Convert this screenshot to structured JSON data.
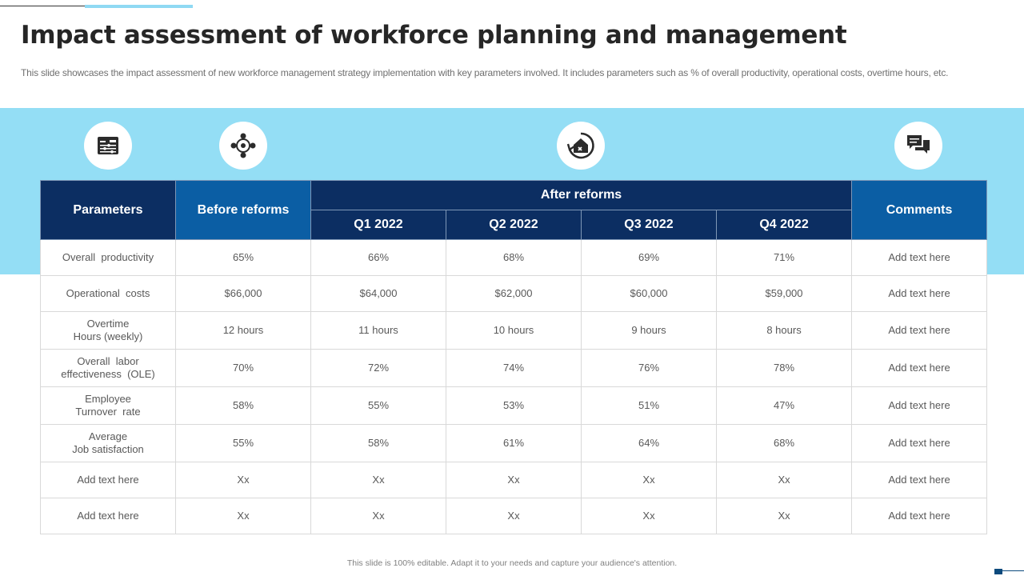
{
  "slide": {
    "title": "Impact assessment of workforce planning and management",
    "subtitle": "This slide showcases the impact assessment of new workforce management strategy implementation with key parameters involved. It includes parameters such as % of overall productivity,  operational costs, overtime hours, etc.",
    "footer": "This slide is 100% editable.  Adapt it to your needs and capture your audience's attention."
  },
  "colors": {
    "band": "#94def5",
    "header_dark": "#0c2e62",
    "header_mid": "#0b5ea4"
  },
  "icons": [
    "dashboard-icon",
    "network-icon",
    "home-refresh-icon",
    "chat-icon"
  ],
  "table": {
    "headers": {
      "parameters": "Parameters",
      "before": "Before reforms",
      "after": "After reforms",
      "q1": "Q1 2022",
      "q2": "Q2 2022",
      "q3": "Q3 2022",
      "q4": "Q4 2022",
      "comments": "Comments"
    },
    "rows": [
      {
        "param": [
          "Overall  productivity"
        ],
        "before": "65%",
        "q1": "66%",
        "q2": "68%",
        "q3": "69%",
        "q4": "71%",
        "comment": "Add text here"
      },
      {
        "param": [
          "Operational  costs"
        ],
        "before": "$66,000",
        "q1": "$64,000",
        "q2": "$62,000",
        "q3": "$60,000",
        "q4": "$59,000",
        "comment": "Add text here"
      },
      {
        "param": [
          "Overtime",
          "Hours (weekly)"
        ],
        "before": "12 hours",
        "q1": "11 hours",
        "q2": "10 hours",
        "q3": "9 hours",
        "q4": "8 hours",
        "comment": "Add text here"
      },
      {
        "param": [
          "Overall  labor",
          "effectiveness  (OLE)"
        ],
        "before": "70%",
        "q1": "72%",
        "q2": "74%",
        "q3": "76%",
        "q4": "78%",
        "comment": "Add text here"
      },
      {
        "param": [
          "Employee",
          "Turnover  rate"
        ],
        "before": "58%",
        "q1": "55%",
        "q2": "53%",
        "q3": "51%",
        "q4": "47%",
        "comment": "Add text here"
      },
      {
        "param": [
          "Average",
          "Job satisfaction"
        ],
        "before": "55%",
        "q1": "58%",
        "q2": "61%",
        "q3": "64%",
        "q4": "68%",
        "comment": "Add text here"
      },
      {
        "param": [
          "Add text here"
        ],
        "before": "Xx",
        "q1": "Xx",
        "q2": "Xx",
        "q3": "Xx",
        "q4": "Xx",
        "comment": "Add text here"
      },
      {
        "param": [
          "Add text here"
        ],
        "before": "Xx",
        "q1": "Xx",
        "q2": "Xx",
        "q3": "Xx",
        "q4": "Xx",
        "comment": "Add text here"
      }
    ]
  }
}
